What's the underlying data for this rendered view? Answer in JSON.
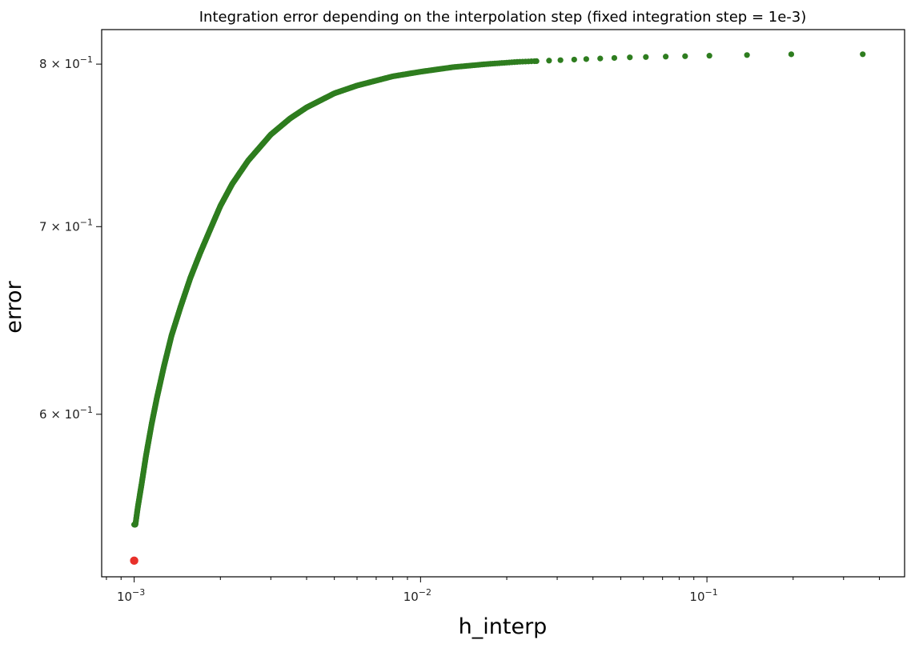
{
  "chart_data": {
    "type": "scatter",
    "title": "Integration error depending on the interpolation step (fixed integration step = 1e-3)",
    "xlabel": "h_interp",
    "ylabel": "error",
    "x_scale": "log",
    "y_scale": "log",
    "xlim": [
      0.00077,
      0.49
    ],
    "ylim": [
      0.525,
      0.823
    ],
    "x_ticks": [
      {
        "value": 0.001,
        "base": "10",
        "exp": "−3"
      },
      {
        "value": 0.01,
        "base": "10",
        "exp": "−2"
      },
      {
        "value": 0.1,
        "base": "10",
        "exp": "−1"
      }
    ],
    "y_ticks": [
      {
        "value": 0.6,
        "mant": "6",
        "exp": "−1"
      },
      {
        "value": 0.7,
        "mant": "7",
        "exp": "−1"
      },
      {
        "value": 0.8,
        "mant": "8",
        "exp": "−1"
      }
    ],
    "grid": false,
    "series": [
      {
        "color": "#2e7d1f",
        "x_start": 0.001,
        "x_end": 0.35,
        "points": [
          {
            "x": 0.00101,
            "y": 0.548
          },
          {
            "x": 0.00103,
            "y": 0.556
          },
          {
            "x": 0.00106,
            "y": 0.566
          },
          {
            "x": 0.0011,
            "y": 0.58
          },
          {
            "x": 0.00115,
            "y": 0.595
          },
          {
            "x": 0.0012,
            "y": 0.608
          },
          {
            "x": 0.00127,
            "y": 0.624
          },
          {
            "x": 0.00135,
            "y": 0.64
          },
          {
            "x": 0.00145,
            "y": 0.655
          },
          {
            "x": 0.00157,
            "y": 0.671
          },
          {
            "x": 0.0017,
            "y": 0.685
          },
          {
            "x": 0.00185,
            "y": 0.699
          },
          {
            "x": 0.002,
            "y": 0.712
          },
          {
            "x": 0.0022,
            "y": 0.725
          },
          {
            "x": 0.0025,
            "y": 0.739
          },
          {
            "x": 0.003,
            "y": 0.755
          },
          {
            "x": 0.0035,
            "y": 0.765
          },
          {
            "x": 0.004,
            "y": 0.772
          },
          {
            "x": 0.005,
            "y": 0.781
          },
          {
            "x": 0.006,
            "y": 0.786
          },
          {
            "x": 0.008,
            "y": 0.792
          },
          {
            "x": 0.01,
            "y": 0.795
          },
          {
            "x": 0.013,
            "y": 0.798
          },
          {
            "x": 0.017,
            "y": 0.8
          },
          {
            "x": 0.022,
            "y": 0.8015
          },
          {
            "x": 0.03,
            "y": 0.8025
          },
          {
            "x": 0.04,
            "y": 0.8035
          },
          {
            "x": 0.055,
            "y": 0.8045
          },
          {
            "x": 0.075,
            "y": 0.805
          },
          {
            "x": 0.1,
            "y": 0.8055
          },
          {
            "x": 0.14,
            "y": 0.806
          },
          {
            "x": 0.2,
            "y": 0.8065
          },
          {
            "x": 0.35,
            "y": 0.8065
          }
        ],
        "x_sparse": [
          0.0254,
          0.0281,
          0.0308,
          0.0344,
          0.0379,
          0.0424,
          0.0475,
          0.0538,
          0.0612,
          0.0718,
          0.0839,
          0.102,
          0.138,
          0.197,
          0.35
        ]
      },
      {
        "color": "#e8302a",
        "points": [
          {
            "x": 0.001,
            "y": 0.532
          }
        ]
      }
    ]
  }
}
